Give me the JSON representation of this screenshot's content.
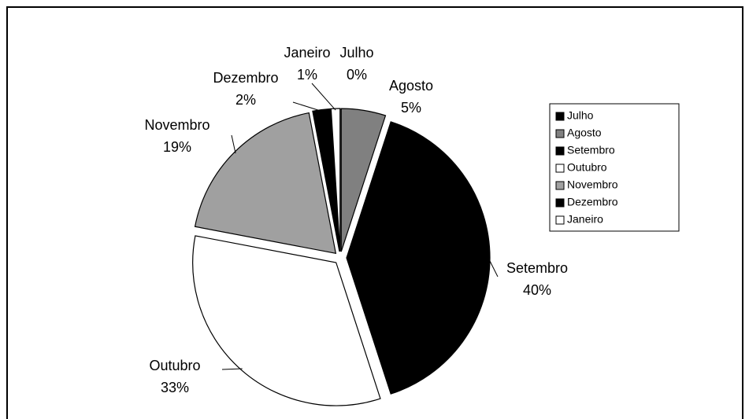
{
  "chart_data": {
    "type": "pie",
    "categories": [
      "Julho",
      "Agosto",
      "Setembro",
      "Outubro",
      "Novembro",
      "Dezembro",
      "Janeiro"
    ],
    "values": [
      0,
      5,
      40,
      33,
      19,
      2,
      1
    ],
    "value_labels": [
      "0%",
      "5%",
      "40%",
      "33%",
      "19%",
      "2%",
      "1%"
    ],
    "colors": [
      "#000000",
      "#808080",
      "#000000",
      "#ffffff",
      "#a0a0a0",
      "#000000",
      "#ffffff"
    ],
    "legend": "right"
  }
}
